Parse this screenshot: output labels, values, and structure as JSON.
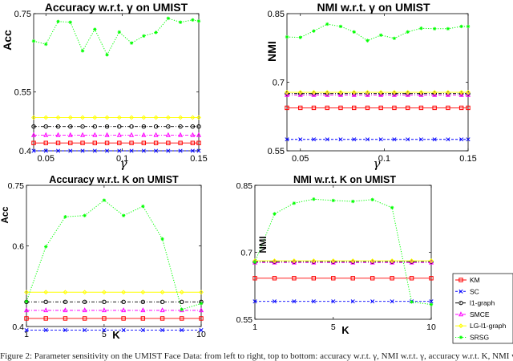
{
  "caption": "Figure 2: Parameter sensitivity on the UMIST Face Data: from left to right, top to bottom: accuracy w.r.t. γ, NMI w.r.t. γ, accuracy w.r.t. K, NMI w.r.t. K",
  "legend": [
    {
      "label": "KM",
      "color": "#ff0000",
      "marker": "square",
      "dash": "solid"
    },
    {
      "label": "SC",
      "color": "#0000ff",
      "marker": "x",
      "dash": "dashed"
    },
    {
      "label": "l1-graph",
      "color": "#000000",
      "marker": "circle",
      "dash": "dashdot"
    },
    {
      "label": "SMCE",
      "color": "#ff00ff",
      "marker": "triangle",
      "dash": "dashdot"
    },
    {
      "label": "LG-l1-graph",
      "color": "#ffff00",
      "marker": "diamond",
      "dash": "solid"
    },
    {
      "label": "SRSG",
      "color": "#00ff00",
      "marker": "star",
      "dash": "dotted"
    }
  ],
  "chart_data": [
    {
      "type": "line",
      "title": "Accuracy w.r.t. γ on UMIST",
      "xlabel": "γ",
      "ylabel": "Acc",
      "xlim": [
        0.042,
        0.15
      ],
      "ylim": [
        0.4,
        0.75
      ],
      "xticks": [
        0.05,
        0.1,
        0.15
      ],
      "xtick_labels": [
        "0.05",
        "0.1",
        "0.15"
      ],
      "yticks": [
        0.4,
        0.55,
        0.75
      ],
      "ytick_labels": [
        "0.4",
        "0.55",
        "0.75"
      ],
      "x": [
        0.042,
        0.05,
        0.058,
        0.066,
        0.074,
        0.082,
        0.09,
        0.098,
        0.106,
        0.114,
        0.122,
        0.13,
        0.138,
        0.146,
        0.15
      ],
      "series": [
        {
          "name": "KM",
          "values": [
            0.42,
            0.42,
            0.42,
            0.42,
            0.42,
            0.42,
            0.42,
            0.42,
            0.42,
            0.42,
            0.42,
            0.42,
            0.42,
            0.42,
            0.42
          ]
        },
        {
          "name": "SC",
          "values": [
            0.4,
            0.4,
            0.4,
            0.4,
            0.4,
            0.4,
            0.4,
            0.4,
            0.4,
            0.4,
            0.4,
            0.4,
            0.4,
            0.4,
            0.4
          ]
        },
        {
          "name": "l1-graph",
          "values": [
            0.462,
            0.462,
            0.462,
            0.462,
            0.462,
            0.462,
            0.462,
            0.462,
            0.462,
            0.462,
            0.462,
            0.462,
            0.462,
            0.462,
            0.462
          ]
        },
        {
          "name": "SMCE",
          "values": [
            0.44,
            0.44,
            0.44,
            0.44,
            0.44,
            0.44,
            0.44,
            0.44,
            0.44,
            0.44,
            0.44,
            0.44,
            0.44,
            0.44,
            0.44
          ]
        },
        {
          "name": "LG-l1-graph",
          "values": [
            0.485,
            0.485,
            0.485,
            0.485,
            0.485,
            0.485,
            0.485,
            0.485,
            0.485,
            0.485,
            0.485,
            0.485,
            0.485,
            0.485,
            0.485
          ]
        },
        {
          "name": "SRSG",
          "values": [
            0.68,
            0.672,
            0.73,
            0.728,
            0.655,
            0.71,
            0.645,
            0.703,
            0.675,
            0.693,
            0.702,
            0.738,
            0.728,
            0.734,
            0.731
          ]
        }
      ]
    },
    {
      "type": "line",
      "title": "NMI w.r.t. γ on UMIST",
      "xlabel": "γ",
      "ylabel": "NMI",
      "xlim": [
        0.042,
        0.15
      ],
      "ylim": [
        0.55,
        0.85
      ],
      "xticks": [
        0.05,
        0.1,
        0.15
      ],
      "xtick_labels": [
        "0.05",
        "0.1",
        "0.15"
      ],
      "yticks": [
        0.55,
        0.7,
        0.85
      ],
      "ytick_labels": [
        "0.55",
        "0.7",
        "0.85"
      ],
      "x": [
        0.042,
        0.05,
        0.058,
        0.066,
        0.074,
        0.082,
        0.09,
        0.098,
        0.106,
        0.114,
        0.122,
        0.13,
        0.138,
        0.146,
        0.15
      ],
      "series": [
        {
          "name": "KM",
          "values": [
            0.644,
            0.644,
            0.644,
            0.644,
            0.644,
            0.644,
            0.644,
            0.644,
            0.644,
            0.644,
            0.644,
            0.644,
            0.644,
            0.644,
            0.644
          ]
        },
        {
          "name": "SC",
          "values": [
            0.575,
            0.575,
            0.575,
            0.575,
            0.575,
            0.575,
            0.575,
            0.575,
            0.575,
            0.575,
            0.575,
            0.575,
            0.575,
            0.575,
            0.575
          ]
        },
        {
          "name": "l1-graph",
          "values": [
            0.675,
            0.675,
            0.675,
            0.675,
            0.675,
            0.675,
            0.675,
            0.675,
            0.675,
            0.675,
            0.675,
            0.675,
            0.675,
            0.675,
            0.675
          ]
        },
        {
          "name": "SMCE",
          "values": [
            0.672,
            0.672,
            0.672,
            0.672,
            0.672,
            0.672,
            0.672,
            0.672,
            0.672,
            0.672,
            0.672,
            0.672,
            0.672,
            0.672,
            0.672
          ]
        },
        {
          "name": "LG-l1-graph",
          "values": [
            0.678,
            0.678,
            0.678,
            0.678,
            0.678,
            0.678,
            0.678,
            0.678,
            0.678,
            0.678,
            0.678,
            0.678,
            0.678,
            0.678,
            0.678
          ]
        },
        {
          "name": "SRSG",
          "values": [
            0.799,
            0.798,
            0.812,
            0.827,
            0.822,
            0.81,
            0.791,
            0.803,
            0.796,
            0.81,
            0.818,
            0.817,
            0.817,
            0.822,
            0.822
          ]
        }
      ]
    },
    {
      "type": "line",
      "title": "Accuracy w.r.t. K on UMIST",
      "xlabel": "K",
      "ylabel": "Acc",
      "xlim": [
        1,
        10
      ],
      "ylim": [
        0.4,
        0.75
      ],
      "xticks": [
        1,
        5,
        10
      ],
      "xtick_labels": [
        "1",
        "5",
        "10"
      ],
      "yticks": [
        0.4,
        0.6,
        0.75
      ],
      "ytick_labels": [
        "0.4",
        "0.6",
        "0.75"
      ],
      "x": [
        1,
        2,
        3,
        4,
        5,
        6,
        7,
        8,
        9,
        10
      ],
      "series": [
        {
          "name": "KM",
          "values": [
            0.42,
            0.42,
            0.42,
            0.42,
            0.42,
            0.42,
            0.42,
            0.42,
            0.42,
            0.42
          ]
        },
        {
          "name": "SC",
          "values": [
            0.391,
            0.391,
            0.391,
            0.391,
            0.391,
            0.391,
            0.391,
            0.391,
            0.391,
            0.391
          ]
        },
        {
          "name": "l1-graph",
          "values": [
            0.461,
            0.461,
            0.461,
            0.461,
            0.461,
            0.461,
            0.461,
            0.461,
            0.461,
            0.461
          ]
        },
        {
          "name": "SMCE",
          "values": [
            0.44,
            0.44,
            0.44,
            0.44,
            0.44,
            0.44,
            0.44,
            0.44,
            0.44,
            0.44
          ]
        },
        {
          "name": "LG-l1-graph",
          "values": [
            0.485,
            0.485,
            0.485,
            0.485,
            0.485,
            0.485,
            0.485,
            0.485,
            0.485,
            0.485
          ]
        },
        {
          "name": "SRSG",
          "values": [
            0.462,
            0.598,
            0.672,
            0.675,
            0.713,
            0.675,
            0.698,
            0.617,
            0.442,
            0.457
          ]
        }
      ]
    },
    {
      "type": "line",
      "title": "NMI w.r.t. K on UMIST",
      "xlabel": "K",
      "ylabel": "NMI",
      "xlim": [
        1,
        10
      ],
      "ylim": [
        0.55,
        0.85
      ],
      "xticks": [
        1,
        5,
        10
      ],
      "xtick_labels": [
        "1",
        "5",
        "10"
      ],
      "yticks": [
        0.55,
        0.7,
        0.85
      ],
      "ytick_labels": [
        "0.55",
        "0.7",
        "0.85"
      ],
      "x": [
        1,
        2,
        3,
        4,
        5,
        6,
        7,
        8,
        9,
        10
      ],
      "series": [
        {
          "name": "KM",
          "values": [
            0.642,
            0.642,
            0.642,
            0.642,
            0.642,
            0.642,
            0.642,
            0.642,
            0.642,
            0.642
          ]
        },
        {
          "name": "SC",
          "values": [
            0.59,
            0.59,
            0.59,
            0.59,
            0.59,
            0.59,
            0.59,
            0.59,
            0.59,
            0.59
          ]
        },
        {
          "name": "l1-graph",
          "values": [
            0.679,
            0.679,
            0.679,
            0.679,
            0.679,
            0.679,
            0.679,
            0.679,
            0.679,
            0.679
          ]
        },
        {
          "name": "SMCE",
          "values": [
            0.677,
            0.677,
            0.677,
            0.677,
            0.677,
            0.677,
            0.677,
            0.677,
            0.677,
            0.677
          ]
        },
        {
          "name": "LG-l1-graph",
          "values": [
            0.681,
            0.681,
            0.681,
            0.681,
            0.681,
            0.681,
            0.681,
            0.681,
            0.681,
            0.681
          ]
        },
        {
          "name": "SRSG",
          "values": [
            0.678,
            0.786,
            0.81,
            0.819,
            0.816,
            0.814,
            0.818,
            0.8,
            0.589,
            0.583
          ]
        }
      ]
    }
  ]
}
